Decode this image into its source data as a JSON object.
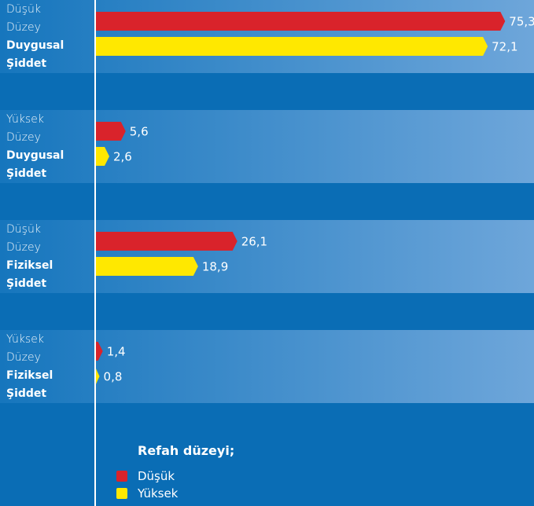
{
  "chart_data": {
    "type": "barh",
    "categories": [
      [
        "Düşük Düzey",
        "Duygusal Şiddet"
      ],
      [
        "Yüksek Düzey",
        "Duygusal Şiddet"
      ],
      [
        "Düşük Düzey",
        "Fiziksel Şiddet"
      ],
      [
        "Yüksek Düzey",
        "Fiziksel Şiddet"
      ]
    ],
    "series": [
      {
        "name": "Düşük",
        "color": "#d9232b",
        "values": [
          75.3,
          5.6,
          26.1,
          1.4
        ],
        "value_labels": [
          "75,3",
          "5,6",
          "26,1",
          "1,4"
        ]
      },
      {
        "name": "Yüksek",
        "color": "#ffe800",
        "values": [
          72.1,
          2.6,
          18.9,
          0.8
        ],
        "value_labels": [
          "72,1",
          "2,6",
          "18,9",
          "0,8"
        ]
      }
    ],
    "xlim": [
      0,
      78
    ],
    "legend_title": "Refah düzeyi;",
    "legend": "bottom"
  }
}
